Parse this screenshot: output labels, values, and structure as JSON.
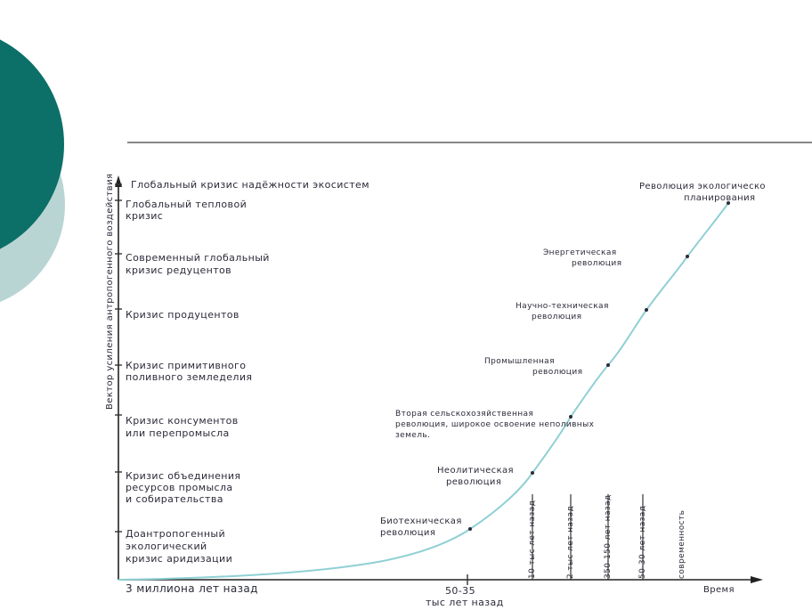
{
  "colors": {
    "dark_teal": "#0c6f68",
    "light_teal": "#b9d5d3",
    "curve": "#8fd0d4",
    "ink": "#2b2b3a"
  },
  "y_axis": {
    "label": "Вектор усиления антропогенного воздействия",
    "levels": [
      {
        "lines": [
          "Доантропогенный",
          "экологический",
          "кризис аридизации"
        ]
      },
      {
        "lines": [
          "Кризис объединения",
          "ресурсов промысла",
          "и собирательства"
        ]
      },
      {
        "lines": [
          "Кризис консументов",
          "или перепромысла"
        ]
      },
      {
        "lines": [
          "Кризис примитивного",
          "поливного земледелия"
        ]
      },
      {
        "lines": [
          "Кризис продуцентов"
        ]
      },
      {
        "lines": [
          "Современный глобальный",
          "кризис редуцентов"
        ]
      },
      {
        "lines": [
          "Глобальный тепловой",
          "кризис"
        ]
      },
      {
        "lines": [
          "Глобальный кризис надёжности экосистем"
        ]
      }
    ]
  },
  "x_axis": {
    "label": "Время",
    "origin_label": "3 миллиона лет назад",
    "tick_5035": {
      "value": "50-35",
      "unit": "тыс лет назад"
    },
    "vertical_ticks": [
      {
        "label": "10 тыс лет назад"
      },
      {
        "label": "2 тыс лет назад"
      },
      {
        "label": "350-150 лет назад"
      },
      {
        "label": "50-30 лет назад"
      },
      {
        "label": "современность"
      }
    ]
  },
  "events": [
    {
      "lines": [
        "Биотехническая",
        "революция"
      ]
    },
    {
      "lines": [
        "Неолитическая",
        "революция"
      ]
    },
    {
      "lines": [
        "Вторая сельскохозяйственная",
        "революция, широкое освоение неполивных",
        "земель."
      ]
    },
    {
      "lines": [
        "Промышленная",
        "революция"
      ]
    },
    {
      "lines": [
        "Научно-техническая",
        "революция"
      ]
    },
    {
      "lines": [
        "Энергетическая",
        "революция"
      ]
    },
    {
      "lines": [
        "Революция экологическо",
        "планирования"
      ]
    }
  ]
}
